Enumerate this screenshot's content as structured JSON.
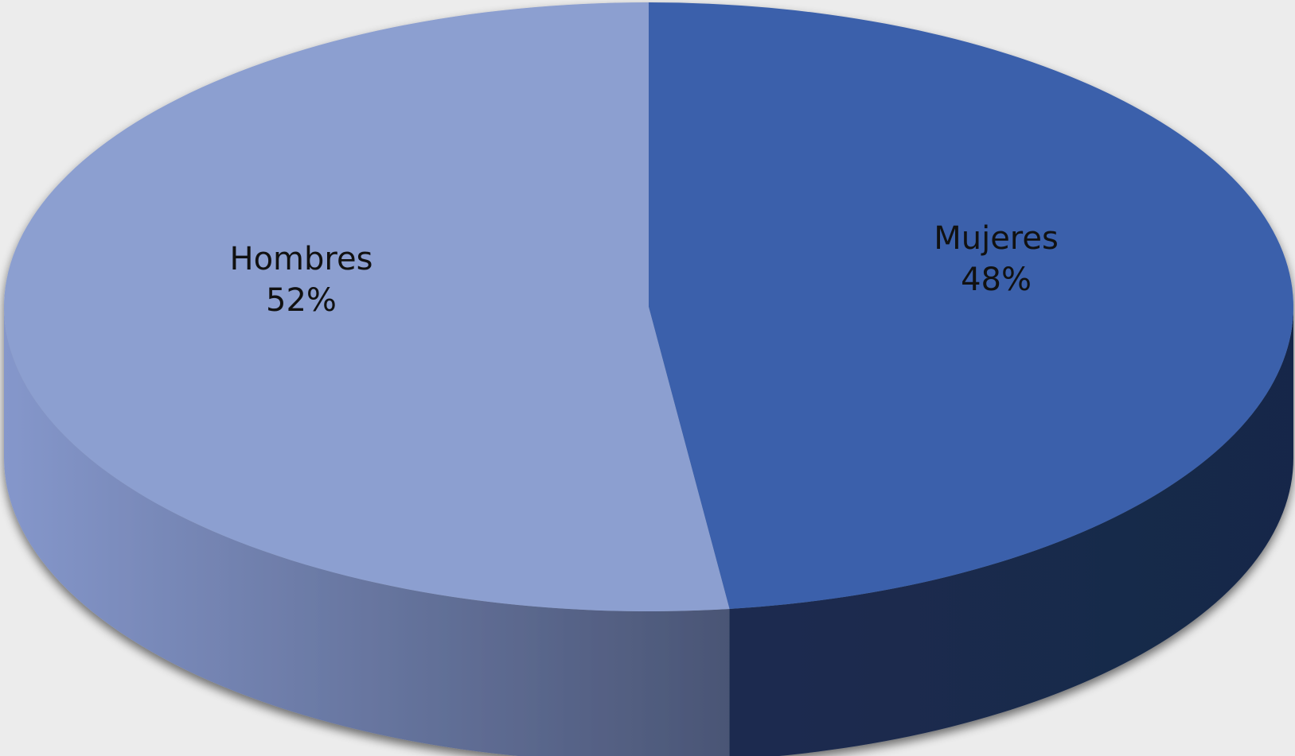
{
  "chart_data": {
    "type": "pie",
    "style": "3d-exploded-none",
    "categories": [
      "Mujeres",
      "Hombres"
    ],
    "values": [
      48,
      52
    ],
    "units": "%",
    "slices": [
      {
        "label": "Mujeres",
        "value": 48,
        "value_label": "48%",
        "color_top": "#3a61ab",
        "color_side": "#1a2c52"
      },
      {
        "label": "Hombres",
        "value": 52,
        "value_label": "52%",
        "color_top": "#8c9fd0",
        "color_side": "#7385b8"
      }
    ],
    "start_angle_deg": 90,
    "direction": "clockwise",
    "legend": "none",
    "labels_on_slices": true
  },
  "colors": {
    "background": "#ececec",
    "shadow": "#3a3a3a"
  }
}
